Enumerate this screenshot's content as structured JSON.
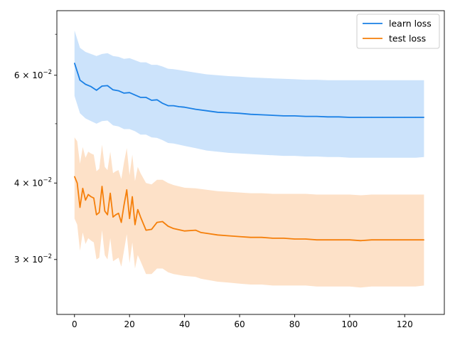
{
  "chart_data": {
    "type": "line",
    "title": "",
    "xlabel": "",
    "ylabel": "",
    "y_scale": "log",
    "xlim": [
      -6.4,
      134.4
    ],
    "ylim": [
      0.0244,
      0.0765
    ],
    "x_ticks": [
      0,
      20,
      40,
      60,
      80,
      100,
      120
    ],
    "x_tick_labels": [
      "0",
      "20",
      "40",
      "60",
      "80",
      "100",
      "120"
    ],
    "y_ticks": [
      {
        "value": 0.03,
        "mantissa": "3",
        "base": "10",
        "exponent": "−2"
      },
      {
        "value": 0.04,
        "mantissa": "4",
        "base": "10",
        "exponent": "−2"
      },
      {
        "value": 0.06,
        "mantissa": "6",
        "base": "10",
        "exponent": "−2"
      }
    ],
    "y_minor_ticks": [
      0.05,
      0.07
    ],
    "grid": false,
    "legend_position": "top-right",
    "series": [
      {
        "name": "learn loss",
        "color": "#1f77b4",
        "line_color": "#1a80e5",
        "band_color": "#cce3fb",
        "x": [
          0,
          2,
          4,
          6,
          8,
          10,
          12,
          14,
          16,
          18,
          20,
          22,
          24,
          26,
          28,
          30,
          32,
          34,
          36,
          38,
          40,
          44,
          48,
          52,
          56,
          60,
          64,
          68,
          72,
          76,
          80,
          84,
          88,
          92,
          96,
          100,
          104,
          108,
          112,
          116,
          120,
          124,
          127
        ],
        "values": [
          0.0628,
          0.0589,
          0.058,
          0.0575,
          0.0567,
          0.0576,
          0.0577,
          0.0568,
          0.0566,
          0.0561,
          0.0562,
          0.0557,
          0.0552,
          0.0552,
          0.0546,
          0.0547,
          0.054,
          0.0535,
          0.0535,
          0.0533,
          0.0532,
          0.0528,
          0.0525,
          0.0522,
          0.0521,
          0.052,
          0.0518,
          0.0517,
          0.0516,
          0.0515,
          0.0515,
          0.0514,
          0.0514,
          0.0513,
          0.0513,
          0.0512,
          0.0512,
          0.0512,
          0.0512,
          0.0512,
          0.0512,
          0.0512,
          0.0512
        ],
        "upper": [
          0.071,
          0.0665,
          0.0655,
          0.065,
          0.0645,
          0.065,
          0.0652,
          0.0645,
          0.0643,
          0.0638,
          0.064,
          0.0635,
          0.063,
          0.063,
          0.0624,
          0.0624,
          0.062,
          0.0615,
          0.0614,
          0.0612,
          0.061,
          0.0606,
          0.0602,
          0.06,
          0.0598,
          0.0597,
          0.0595,
          0.0594,
          0.0593,
          0.0592,
          0.0591,
          0.059,
          0.059,
          0.0589,
          0.0589,
          0.0589,
          0.0589,
          0.0589,
          0.0589,
          0.0589,
          0.0589,
          0.0589,
          0.0589
        ],
        "lower": [
          0.0555,
          0.052,
          0.051,
          0.0505,
          0.05,
          0.0505,
          0.0506,
          0.0497,
          0.0495,
          0.049,
          0.049,
          0.0486,
          0.048,
          0.048,
          0.0475,
          0.0474,
          0.047,
          0.0465,
          0.0464,
          0.0462,
          0.046,
          0.0456,
          0.0452,
          0.045,
          0.0448,
          0.0447,
          0.0446,
          0.0445,
          0.0444,
          0.0443,
          0.0443,
          0.0442,
          0.0442,
          0.0441,
          0.0441,
          0.044,
          0.044,
          0.044,
          0.044,
          0.044,
          0.044,
          0.044,
          0.0441
        ]
      },
      {
        "name": "test loss",
        "color": "#ff7f0e",
        "line_color": "#f57f0a",
        "band_color": "#fde1c8",
        "x": [
          0,
          1,
          2,
          3,
          4,
          5,
          6,
          7,
          8,
          9,
          10,
          11,
          12,
          13,
          14,
          15,
          16,
          17,
          18,
          19,
          20,
          21,
          22,
          23,
          24,
          26,
          28,
          30,
          32,
          34,
          36,
          40,
          44,
          46,
          48,
          52,
          56,
          60,
          64,
          68,
          72,
          76,
          80,
          84,
          88,
          92,
          96,
          100,
          104,
          108,
          112,
          116,
          120,
          124,
          127
        ],
        "values": [
          0.041,
          0.04,
          0.0365,
          0.0392,
          0.0375,
          0.0383,
          0.038,
          0.0378,
          0.0355,
          0.0358,
          0.0395,
          0.036,
          0.0355,
          0.0385,
          0.0352,
          0.0355,
          0.0357,
          0.0345,
          0.0368,
          0.039,
          0.035,
          0.038,
          0.0342,
          0.0362,
          0.0352,
          0.0335,
          0.0336,
          0.0345,
          0.0346,
          0.034,
          0.0337,
          0.0334,
          0.0335,
          0.0332,
          0.0331,
          0.0329,
          0.0328,
          0.0327,
          0.0326,
          0.0326,
          0.0325,
          0.0325,
          0.0324,
          0.0324,
          0.0323,
          0.0323,
          0.0323,
          0.0323,
          0.0322,
          0.0323,
          0.0323,
          0.0323,
          0.0323,
          0.0323,
          0.0323
        ],
        "upper": [
          0.0475,
          0.0468,
          0.043,
          0.0458,
          0.044,
          0.045,
          0.0447,
          0.0445,
          0.0418,
          0.0422,
          0.0462,
          0.0425,
          0.042,
          0.045,
          0.0415,
          0.0418,
          0.042,
          0.0406,
          0.0432,
          0.0456,
          0.0412,
          0.0445,
          0.0403,
          0.0425,
          0.0415,
          0.04,
          0.0398,
          0.0405,
          0.0405,
          0.04,
          0.0397,
          0.0393,
          0.0392,
          0.0391,
          0.039,
          0.0388,
          0.0387,
          0.0386,
          0.0385,
          0.0385,
          0.0384,
          0.0384,
          0.0384,
          0.0384,
          0.0383,
          0.0383,
          0.0383,
          0.0383,
          0.0382,
          0.0383,
          0.0383,
          0.0383,
          0.0383,
          0.0383,
          0.0383
        ],
        "lower": [
          0.035,
          0.0342,
          0.031,
          0.0332,
          0.0318,
          0.0325,
          0.0322,
          0.032,
          0.03,
          0.0302,
          0.0335,
          0.0305,
          0.03,
          0.0325,
          0.0298,
          0.03,
          0.0302,
          0.0292,
          0.031,
          0.033,
          0.0296,
          0.032,
          0.029,
          0.0305,
          0.0298,
          0.0284,
          0.0284,
          0.029,
          0.029,
          0.0286,
          0.0284,
          0.0282,
          0.0281,
          0.0279,
          0.0278,
          0.0276,
          0.0275,
          0.0274,
          0.0273,
          0.0273,
          0.0272,
          0.0272,
          0.0272,
          0.0272,
          0.0271,
          0.0271,
          0.0271,
          0.0271,
          0.027,
          0.0271,
          0.0271,
          0.0271,
          0.0271,
          0.0271,
          0.0272
        ]
      }
    ]
  }
}
